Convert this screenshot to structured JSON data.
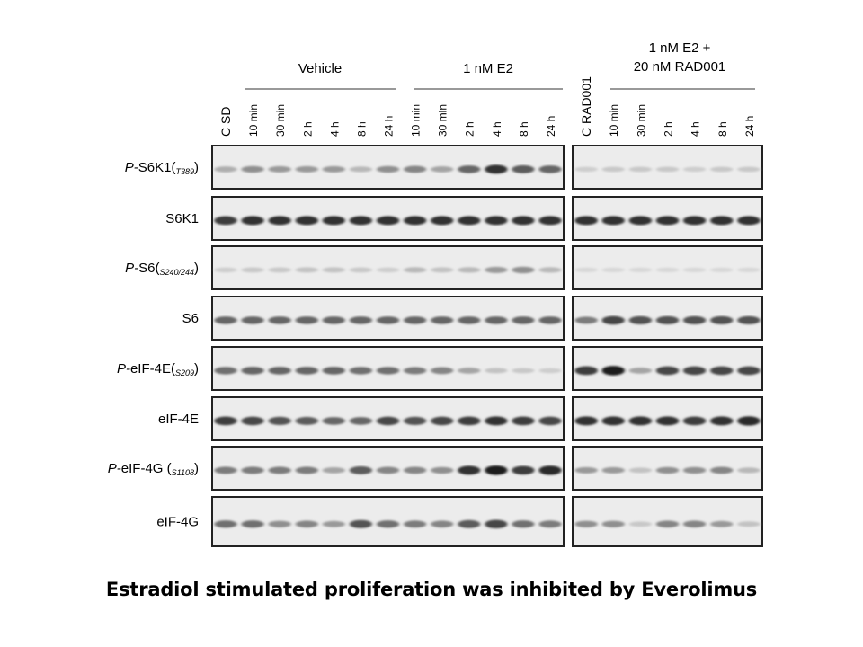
{
  "groups": {
    "vehicle": "Vehicle",
    "e2": "1 nM E2",
    "rad_line1": "1 nM E2 +",
    "rad_line2": "20 nM RAD001"
  },
  "lanes_left": [
    "C SD",
    "10 min",
    "30 min",
    "2 h",
    "4 h",
    "8 h",
    "24 h",
    "10 min",
    "30 min",
    "2 h",
    "4 h",
    "8 h",
    "24 h"
  ],
  "lanes_right": [
    "C RAD001",
    "10 min",
    "30 min",
    "2 h",
    "4 h",
    "8 h",
    "24 h"
  ],
  "blots": [
    {
      "prefix": "P-",
      "main": "S6K1(",
      "sub": "T389",
      "suffix": ")",
      "left_intensity": [
        0.25,
        0.4,
        0.35,
        0.35,
        0.35,
        0.2,
        0.4,
        0.45,
        0.3,
        0.6,
        0.85,
        0.65,
        0.6
      ],
      "right_intensity": [
        0.1,
        0.12,
        0.12,
        0.12,
        0.1,
        0.12,
        0.12
      ]
    },
    {
      "prefix": "",
      "main": "S6K1",
      "sub": "",
      "suffix": "",
      "left_intensity": [
        0.8,
        0.85,
        0.85,
        0.85,
        0.85,
        0.85,
        0.85,
        0.85,
        0.85,
        0.85,
        0.85,
        0.85,
        0.85
      ],
      "right_intensity": [
        0.85,
        0.85,
        0.85,
        0.85,
        0.85,
        0.85,
        0.85
      ]
    },
    {
      "prefix": "P-",
      "main": "S6(",
      "sub": "S240/244",
      "suffix": ")",
      "left_intensity": [
        0.1,
        0.12,
        0.12,
        0.15,
        0.15,
        0.12,
        0.1,
        0.2,
        0.15,
        0.2,
        0.35,
        0.4,
        0.2
      ],
      "right_intensity": [
        0.05,
        0.05,
        0.05,
        0.05,
        0.05,
        0.05,
        0.05
      ]
    },
    {
      "prefix": "",
      "main": "S6",
      "sub": "",
      "suffix": "",
      "left_intensity": [
        0.6,
        0.6,
        0.6,
        0.6,
        0.6,
        0.6,
        0.6,
        0.6,
        0.6,
        0.6,
        0.6,
        0.6,
        0.6
      ],
      "right_intensity": [
        0.5,
        0.75,
        0.7,
        0.7,
        0.7,
        0.7,
        0.7
      ]
    },
    {
      "prefix": "P-",
      "main": "eIF-4E(",
      "sub": "S209",
      "suffix": ")",
      "left_intensity": [
        0.55,
        0.6,
        0.6,
        0.6,
        0.6,
        0.55,
        0.55,
        0.5,
        0.45,
        0.3,
        0.15,
        0.12,
        0.1
      ],
      "right_intensity": [
        0.8,
        0.95,
        0.3,
        0.75,
        0.75,
        0.75,
        0.75
      ]
    },
    {
      "prefix": "",
      "main": "eIF-4E",
      "sub": "",
      "suffix": "",
      "left_intensity": [
        0.8,
        0.75,
        0.7,
        0.65,
        0.6,
        0.6,
        0.75,
        0.7,
        0.75,
        0.8,
        0.85,
        0.8,
        0.75
      ],
      "right_intensity": [
        0.85,
        0.85,
        0.85,
        0.85,
        0.8,
        0.85,
        0.9
      ]
    },
    {
      "prefix": "P-",
      "main": "eIF-4G (",
      "sub": "S1108",
      "suffix": ")",
      "left_intensity": [
        0.5,
        0.5,
        0.5,
        0.5,
        0.3,
        0.65,
        0.45,
        0.45,
        0.4,
        0.85,
        0.95,
        0.8,
        0.9
      ],
      "right_intensity": [
        0.35,
        0.35,
        0.15,
        0.4,
        0.4,
        0.45,
        0.2
      ]
    },
    {
      "prefix": "",
      "main": "eIF-4G",
      "sub": "",
      "suffix": "",
      "left_intensity": [
        0.55,
        0.55,
        0.4,
        0.45,
        0.35,
        0.7,
        0.55,
        0.5,
        0.45,
        0.65,
        0.75,
        0.55,
        0.5
      ],
      "right_intensity": [
        0.4,
        0.4,
        0.12,
        0.45,
        0.45,
        0.35,
        0.15
      ]
    }
  ],
  "caption": "Estradiol stimulated proliferation was inhibited by Everolimus"
}
